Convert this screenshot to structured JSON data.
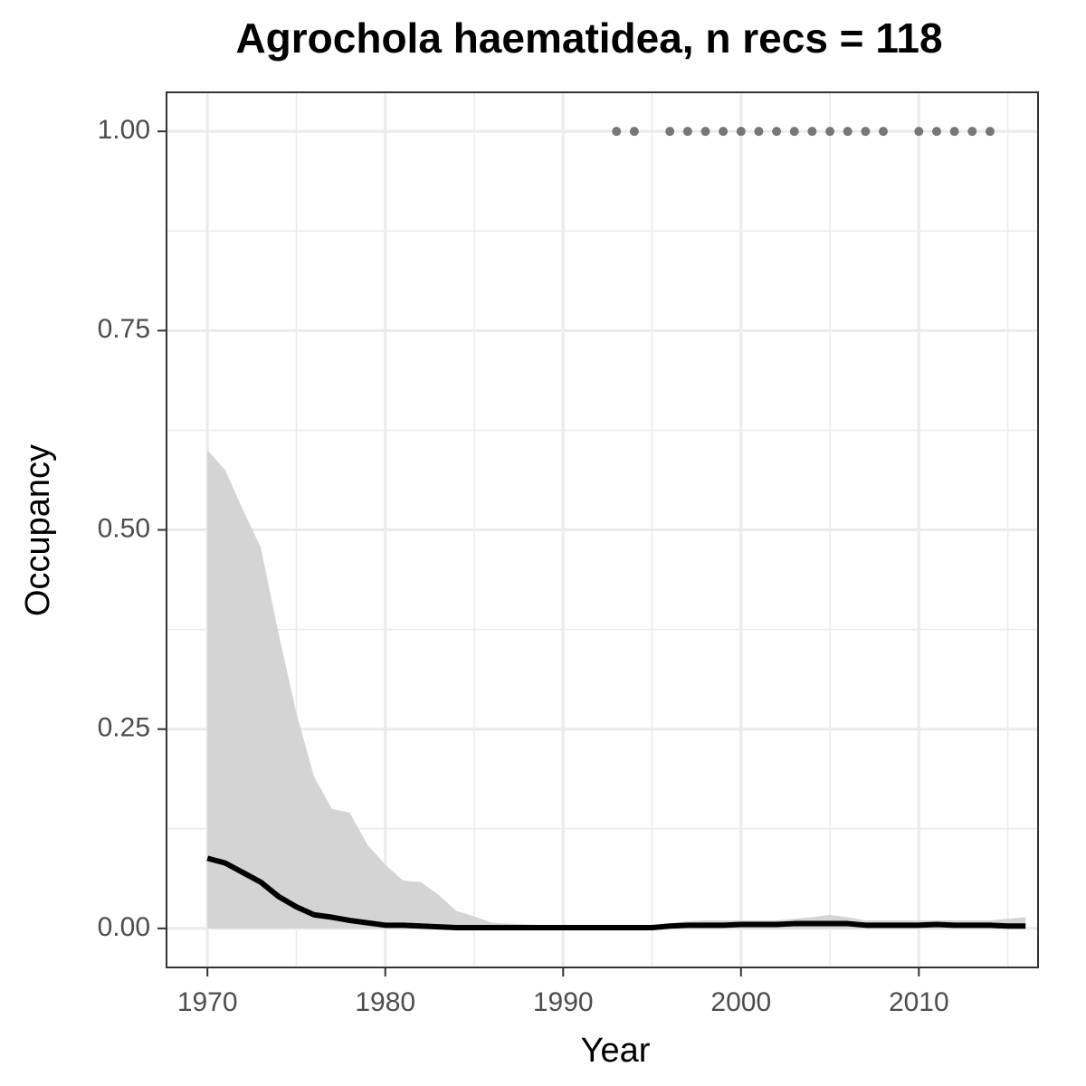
{
  "chart_data": {
    "type": "line",
    "title": "Agrochola haematidea, n recs = 118",
    "x_label": "Year",
    "y_label": "Occupancy",
    "x": [
      1970,
      1971,
      1972,
      1973,
      1974,
      1975,
      1976,
      1977,
      1978,
      1979,
      1980,
      1981,
      1982,
      1983,
      1984,
      1985,
      1986,
      1987,
      1988,
      1989,
      1990,
      1991,
      1992,
      1993,
      1994,
      1995,
      1996,
      1997,
      1998,
      1999,
      2000,
      2001,
      2002,
      2003,
      2004,
      2005,
      2006,
      2007,
      2008,
      2009,
      2010,
      2011,
      2012,
      2013,
      2014,
      2015,
      2016
    ],
    "values": [
      0.088,
      0.082,
      0.07,
      0.058,
      0.04,
      0.027,
      0.017,
      0.014,
      0.01,
      0.007,
      0.004,
      0.004,
      0.003,
      0.002,
      0.001,
      0.001,
      0.001,
      0.001,
      0.001,
      0.001,
      0.001,
      0.001,
      0.001,
      0.001,
      0.001,
      0.001,
      0.003,
      0.004,
      0.004,
      0.004,
      0.005,
      0.005,
      0.005,
      0.006,
      0.006,
      0.006,
      0.006,
      0.004,
      0.004,
      0.004,
      0.004,
      0.005,
      0.004,
      0.004,
      0.004,
      0.003,
      0.003
    ],
    "upper": [
      0.6,
      0.575,
      0.525,
      0.478,
      0.37,
      0.27,
      0.19,
      0.15,
      0.145,
      0.105,
      0.08,
      0.06,
      0.058,
      0.042,
      0.022,
      0.015,
      0.007,
      0.006,
      0.005,
      0.004,
      0.003,
      0.003,
      0.003,
      0.003,
      0.003,
      0.003,
      0.006,
      0.009,
      0.01,
      0.01,
      0.01,
      0.01,
      0.01,
      0.012,
      0.014,
      0.017,
      0.014,
      0.01,
      0.01,
      0.01,
      0.01,
      0.01,
      0.01,
      0.01,
      0.01,
      0.012,
      0.014
    ],
    "lower": [
      0,
      0,
      0,
      0,
      0,
      0,
      0,
      0,
      0,
      0,
      0,
      0,
      0,
      0,
      0,
      0,
      0,
      0,
      0,
      0,
      0,
      0,
      0,
      0,
      0,
      0,
      0,
      0,
      0,
      0,
      0,
      0,
      0,
      0,
      0,
      0,
      0,
      0,
      0,
      0,
      0,
      0,
      0,
      0,
      0,
      0,
      0
    ],
    "color": "#000000",
    "ribbon_color": "#d4d4d4",
    "points": {
      "x": [
        1993,
        1994,
        1996,
        1997,
        1998,
        1999,
        2000,
        2001,
        2002,
        2003,
        2004,
        2005,
        2006,
        2007,
        2008,
        2010,
        2011,
        2012,
        2013,
        2014
      ],
      "y": [
        1,
        1,
        1,
        1,
        1,
        1,
        1,
        1,
        1,
        1,
        1,
        1,
        1,
        1,
        1,
        1,
        1,
        1,
        1,
        1
      ],
      "color": "#777777"
    },
    "xlim": [
      1967.7,
      2016.7
    ],
    "ylim": [
      -0.049,
      1.049
    ],
    "xticks": [
      1970,
      1980,
      1990,
      2000,
      2010
    ],
    "yticks": [
      {
        "value": 0,
        "label": "0.00"
      },
      {
        "value": 0.25,
        "label": "0.25"
      },
      {
        "value": 0.5,
        "label": "0.50"
      },
      {
        "value": 0.75,
        "label": "0.75"
      },
      {
        "value": 1,
        "label": "1.00"
      }
    ],
    "xminor_ticks": [
      1975,
      1985,
      1995,
      2005,
      2015
    ],
    "yminor_ticks": [
      0.125,
      0.375,
      0.625,
      0.875
    ],
    "grid": true
  }
}
